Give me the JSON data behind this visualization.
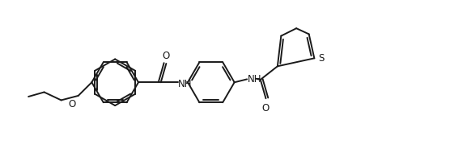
{
  "bg_color": "#ffffff",
  "line_color": "#1a1a1a",
  "line_width": 1.4,
  "figsize": [
    5.56,
    2.01
  ],
  "dpi": 100,
  "xlim": [
    0.0,
    10.0
  ],
  "ylim": [
    0.0,
    3.6
  ],
  "font_size": 8.5,
  "labels": {
    "O1": "O",
    "O2": "O",
    "O3": "O",
    "NH1": "NH",
    "NH2": "NH",
    "S": "S"
  }
}
